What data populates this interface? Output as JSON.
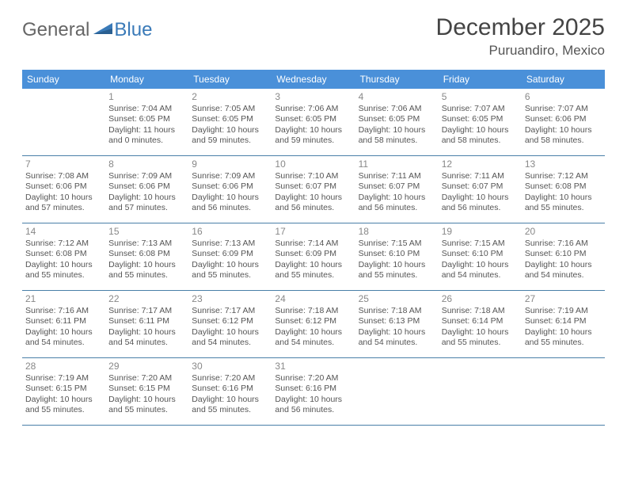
{
  "logo": {
    "word1": "General",
    "word2": "Blue"
  },
  "title": "December 2025",
  "location": "Puruandiro, Mexico",
  "colors": {
    "headerBar": "#4a90d9",
    "headerBarText": "#ffffff",
    "ruleLine": "#4a7fa8",
    "dayNum": "#888888",
    "bodyText": "#555555",
    "logoGray": "#666666",
    "logoBlue": "#3a7ab8"
  },
  "dow": [
    "Sunday",
    "Monday",
    "Tuesday",
    "Wednesday",
    "Thursday",
    "Friday",
    "Saturday"
  ],
  "weeks": [
    [
      null,
      {
        "n": "1",
        "sr": "Sunrise: 7:04 AM",
        "ss": "Sunset: 6:05 PM",
        "dl": "Daylight: 11 hours and 0 minutes."
      },
      {
        "n": "2",
        "sr": "Sunrise: 7:05 AM",
        "ss": "Sunset: 6:05 PM",
        "dl": "Daylight: 10 hours and 59 minutes."
      },
      {
        "n": "3",
        "sr": "Sunrise: 7:06 AM",
        "ss": "Sunset: 6:05 PM",
        "dl": "Daylight: 10 hours and 59 minutes."
      },
      {
        "n": "4",
        "sr": "Sunrise: 7:06 AM",
        "ss": "Sunset: 6:05 PM",
        "dl": "Daylight: 10 hours and 58 minutes."
      },
      {
        "n": "5",
        "sr": "Sunrise: 7:07 AM",
        "ss": "Sunset: 6:05 PM",
        "dl": "Daylight: 10 hours and 58 minutes."
      },
      {
        "n": "6",
        "sr": "Sunrise: 7:07 AM",
        "ss": "Sunset: 6:06 PM",
        "dl": "Daylight: 10 hours and 58 minutes."
      }
    ],
    [
      {
        "n": "7",
        "sr": "Sunrise: 7:08 AM",
        "ss": "Sunset: 6:06 PM",
        "dl": "Daylight: 10 hours and 57 minutes."
      },
      {
        "n": "8",
        "sr": "Sunrise: 7:09 AM",
        "ss": "Sunset: 6:06 PM",
        "dl": "Daylight: 10 hours and 57 minutes."
      },
      {
        "n": "9",
        "sr": "Sunrise: 7:09 AM",
        "ss": "Sunset: 6:06 PM",
        "dl": "Daylight: 10 hours and 56 minutes."
      },
      {
        "n": "10",
        "sr": "Sunrise: 7:10 AM",
        "ss": "Sunset: 6:07 PM",
        "dl": "Daylight: 10 hours and 56 minutes."
      },
      {
        "n": "11",
        "sr": "Sunrise: 7:11 AM",
        "ss": "Sunset: 6:07 PM",
        "dl": "Daylight: 10 hours and 56 minutes."
      },
      {
        "n": "12",
        "sr": "Sunrise: 7:11 AM",
        "ss": "Sunset: 6:07 PM",
        "dl": "Daylight: 10 hours and 56 minutes."
      },
      {
        "n": "13",
        "sr": "Sunrise: 7:12 AM",
        "ss": "Sunset: 6:08 PM",
        "dl": "Daylight: 10 hours and 55 minutes."
      }
    ],
    [
      {
        "n": "14",
        "sr": "Sunrise: 7:12 AM",
        "ss": "Sunset: 6:08 PM",
        "dl": "Daylight: 10 hours and 55 minutes."
      },
      {
        "n": "15",
        "sr": "Sunrise: 7:13 AM",
        "ss": "Sunset: 6:08 PM",
        "dl": "Daylight: 10 hours and 55 minutes."
      },
      {
        "n": "16",
        "sr": "Sunrise: 7:13 AM",
        "ss": "Sunset: 6:09 PM",
        "dl": "Daylight: 10 hours and 55 minutes."
      },
      {
        "n": "17",
        "sr": "Sunrise: 7:14 AM",
        "ss": "Sunset: 6:09 PM",
        "dl": "Daylight: 10 hours and 55 minutes."
      },
      {
        "n": "18",
        "sr": "Sunrise: 7:15 AM",
        "ss": "Sunset: 6:10 PM",
        "dl": "Daylight: 10 hours and 55 minutes."
      },
      {
        "n": "19",
        "sr": "Sunrise: 7:15 AM",
        "ss": "Sunset: 6:10 PM",
        "dl": "Daylight: 10 hours and 54 minutes."
      },
      {
        "n": "20",
        "sr": "Sunrise: 7:16 AM",
        "ss": "Sunset: 6:10 PM",
        "dl": "Daylight: 10 hours and 54 minutes."
      }
    ],
    [
      {
        "n": "21",
        "sr": "Sunrise: 7:16 AM",
        "ss": "Sunset: 6:11 PM",
        "dl": "Daylight: 10 hours and 54 minutes."
      },
      {
        "n": "22",
        "sr": "Sunrise: 7:17 AM",
        "ss": "Sunset: 6:11 PM",
        "dl": "Daylight: 10 hours and 54 minutes."
      },
      {
        "n": "23",
        "sr": "Sunrise: 7:17 AM",
        "ss": "Sunset: 6:12 PM",
        "dl": "Daylight: 10 hours and 54 minutes."
      },
      {
        "n": "24",
        "sr": "Sunrise: 7:18 AM",
        "ss": "Sunset: 6:12 PM",
        "dl": "Daylight: 10 hours and 54 minutes."
      },
      {
        "n": "25",
        "sr": "Sunrise: 7:18 AM",
        "ss": "Sunset: 6:13 PM",
        "dl": "Daylight: 10 hours and 54 minutes."
      },
      {
        "n": "26",
        "sr": "Sunrise: 7:18 AM",
        "ss": "Sunset: 6:14 PM",
        "dl": "Daylight: 10 hours and 55 minutes."
      },
      {
        "n": "27",
        "sr": "Sunrise: 7:19 AM",
        "ss": "Sunset: 6:14 PM",
        "dl": "Daylight: 10 hours and 55 minutes."
      }
    ],
    [
      {
        "n": "28",
        "sr": "Sunrise: 7:19 AM",
        "ss": "Sunset: 6:15 PM",
        "dl": "Daylight: 10 hours and 55 minutes."
      },
      {
        "n": "29",
        "sr": "Sunrise: 7:20 AM",
        "ss": "Sunset: 6:15 PM",
        "dl": "Daylight: 10 hours and 55 minutes."
      },
      {
        "n": "30",
        "sr": "Sunrise: 7:20 AM",
        "ss": "Sunset: 6:16 PM",
        "dl": "Daylight: 10 hours and 55 minutes."
      },
      {
        "n": "31",
        "sr": "Sunrise: 7:20 AM",
        "ss": "Sunset: 6:16 PM",
        "dl": "Daylight: 10 hours and 56 minutes."
      },
      null,
      null,
      null
    ]
  ]
}
